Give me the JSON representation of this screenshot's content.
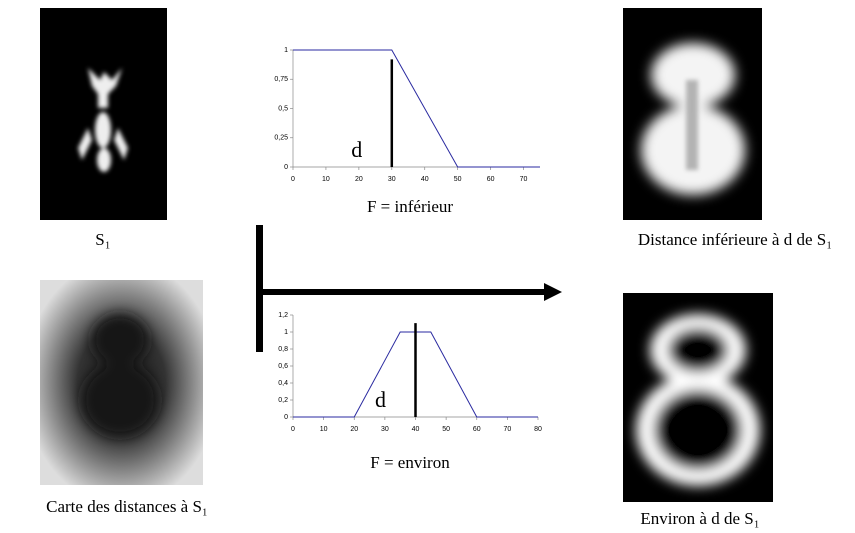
{
  "captions": {
    "s1": "S₁",
    "distance": "Distance inférieure à d de S₁",
    "carte": "Carte des distances à S₁",
    "environ": "Environ à d de S₁"
  },
  "chart_data": [
    {
      "type": "line",
      "caption": "F = inférieur",
      "color": "#2a2aa0",
      "x": [
        0,
        30,
        50,
        75
      ],
      "series": [
        {
          "values": [
            1,
            1,
            0,
            0
          ]
        }
      ],
      "xlim": [
        0,
        75
      ],
      "xticks": [
        0,
        10,
        20,
        30,
        40,
        50,
        60,
        70
      ],
      "ylim": [
        0,
        1
      ],
      "yticks": [
        0,
        {
          "value": 0.25,
          "label": "0,25"
        },
        {
          "value": 0.5,
          "label": "0,5"
        },
        {
          "value": 0.75,
          "label": "0,75"
        },
        1
      ],
      "marker": {
        "x": 30,
        "label": "d"
      }
    },
    {
      "type": "line",
      "caption": "F = environ",
      "color": "#2a2aa0",
      "x": [
        0,
        20,
        35,
        45,
        60,
        80
      ],
      "series": [
        {
          "values": [
            0,
            0,
            1,
            1,
            0,
            0
          ]
        }
      ],
      "xlim": [
        0,
        80
      ],
      "xticks": [
        0,
        10,
        20,
        30,
        40,
        50,
        60,
        70,
        80
      ],
      "ylim": [
        0,
        1.2
      ],
      "yticks": [
        0,
        {
          "value": 0.2,
          "label": "0,2"
        },
        {
          "value": 0.4,
          "label": "0,4"
        },
        {
          "value": 0.6,
          "label": "0,6"
        },
        {
          "value": 0.8,
          "label": "0,8"
        },
        1,
        {
          "value": 1.2,
          "label": "1,2"
        }
      ],
      "marker": {
        "x": 40,
        "label": "d"
      }
    }
  ]
}
